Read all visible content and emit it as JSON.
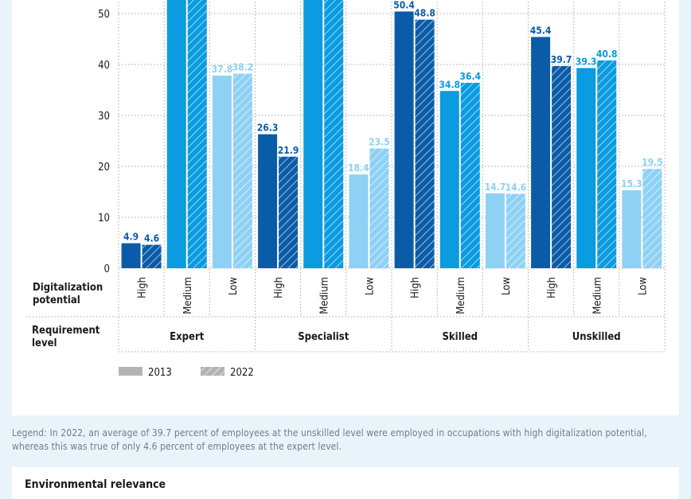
{
  "chart_data": {
    "type": "bar",
    "y_ticks": [
      0,
      10,
      20,
      30,
      40,
      50
    ],
    "ylim": [
      0,
      50
    ],
    "row_label_potential": "Digitalization potential",
    "row_label_requirement": "Requirement level",
    "requirement_levels": [
      {
        "name": "Expert",
        "groups": [
          {
            "potential": "High",
            "values": [
              4.9,
              4.6
            ],
            "labels": [
              "4.9",
              "4.6"
            ]
          },
          {
            "potential": "Medium",
            "values": [
              null,
              null
            ],
            "labels": [
              "",
              ""
            ]
          },
          {
            "potential": "Low",
            "values": [
              37.8,
              38.2
            ],
            "labels": [
              "37.8",
              "38.2"
            ]
          }
        ]
      },
      {
        "name": "Specialist",
        "groups": [
          {
            "potential": "High",
            "values": [
              26.3,
              21.9
            ],
            "labels": [
              "26.3",
              "21.9"
            ]
          },
          {
            "potential": "Medium",
            "values": [
              null,
              null
            ],
            "labels": [
              "",
              ""
            ]
          },
          {
            "potential": "Low",
            "values": [
              18.4,
              23.5
            ],
            "labels": [
              "18.4",
              "23.5"
            ]
          }
        ]
      },
      {
        "name": "Skilled",
        "groups": [
          {
            "potential": "High",
            "values": [
              50.4,
              48.8
            ],
            "labels": [
              "50.4",
              "48.8"
            ]
          },
          {
            "potential": "Medium",
            "values": [
              34.8,
              36.4
            ],
            "labels": [
              "34.8",
              "36.4"
            ]
          },
          {
            "potential": "Low",
            "values": [
              14.7,
              14.6
            ],
            "labels": [
              "14.7",
              "14.6"
            ]
          }
        ]
      },
      {
        "name": "Unskilled",
        "groups": [
          {
            "potential": "High",
            "values": [
              45.4,
              39.7
            ],
            "labels": [
              "45.4",
              "39.7"
            ]
          },
          {
            "potential": "Medium",
            "values": [
              39.3,
              40.8
            ],
            "labels": [
              "39.3",
              "40.8"
            ]
          },
          {
            "potential": "Low",
            "values": [
              15.3,
              19.5
            ],
            "labels": [
              "15.3",
              "19.5"
            ]
          }
        ]
      }
    ],
    "series": [
      {
        "name": "2013"
      },
      {
        "name": "2022"
      }
    ],
    "colors": {
      "High": "#0b5ca8",
      "Medium": "#0a9be0",
      "Low": "#8ed1f5",
      "label_High": "#0b5ca8",
      "label_Medium": "#0a9be0",
      "label_Low": "#8ed1f5",
      "legend_swatch": "#b3b3b3",
      "grid": "#a9a9a9",
      "axis_text": "#1a1a1a"
    }
  },
  "legend_note": "Legend: In 2022, an average of 39.7 percent of employees at the unskilled level were employed in occupations with high digitalization potential, whereas this was true of only 4.6 percent of employees at the expert level.",
  "next_section_title": "Environmental relevance"
}
